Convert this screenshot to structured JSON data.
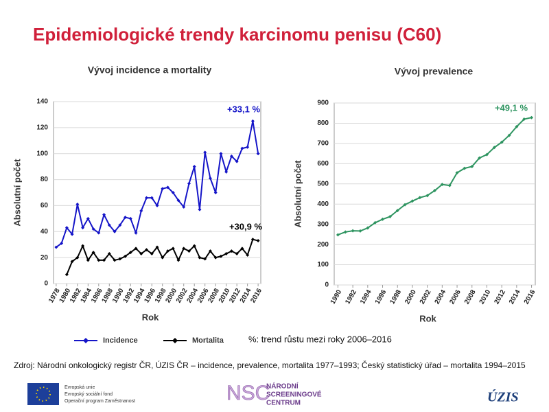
{
  "title": "Epidemiologické trendy karcinomu penisu (C60)",
  "chart_data": [
    {
      "type": "line",
      "title": "Vývoj incidence a mortality",
      "xlabel": "Rok",
      "ylabel": "Absolutní počet",
      "x": [
        1978,
        1979,
        1980,
        1981,
        1982,
        1983,
        1984,
        1985,
        1986,
        1987,
        1988,
        1989,
        1990,
        1991,
        1992,
        1993,
        1994,
        1995,
        1996,
        1997,
        1998,
        1999,
        2000,
        2001,
        2002,
        2003,
        2004,
        2005,
        2006,
        2007,
        2008,
        2009,
        2010,
        2011,
        2012,
        2013,
        2014,
        2015,
        2016
      ],
      "xlim": [
        1977.5,
        2016.5
      ],
      "xticks": [
        1978,
        1980,
        1982,
        1984,
        1986,
        1988,
        1990,
        1992,
        1994,
        1996,
        1998,
        2000,
        2002,
        2004,
        2006,
        2008,
        2010,
        2012,
        2014,
        2016
      ],
      "ylim": [
        0,
        140
      ],
      "yticks": [
        0,
        20,
        40,
        60,
        80,
        100,
        120,
        140
      ],
      "grid": true,
      "legend": "bottom",
      "series": [
        {
          "name": "Incidence",
          "color": "#1515c8",
          "values": [
            28,
            31,
            43,
            38,
            61,
            43,
            50,
            42,
            39,
            53,
            45,
            40,
            45,
            51,
            50,
            39,
            56,
            66,
            66,
            60,
            73,
            74,
            70,
            64,
            59,
            77,
            90,
            57,
            101,
            81,
            70,
            100,
            86,
            98,
            94,
            104,
            105,
            125,
            100
          ]
        },
        {
          "name": "Mortalita",
          "color": "#000000",
          "values": [
            null,
            null,
            7,
            17,
            20,
            29,
            18,
            24,
            18,
            18,
            23,
            18,
            19,
            21,
            24,
            27,
            23,
            26,
            23,
            28,
            20,
            25,
            27,
            18,
            27,
            25,
            29,
            20,
            19,
            25,
            20,
            21,
            23,
            25,
            23,
            27,
            22,
            34,
            33
          ]
        }
      ],
      "annotations": [
        "+33,1 %",
        "+30,9 %"
      ]
    },
    {
      "type": "line",
      "title": "Vývoj prevalence",
      "xlabel": "Rok",
      "ylabel": "Absolutní počet",
      "x": [
        1990,
        1991,
        1992,
        1993,
        1994,
        1995,
        1996,
        1997,
        1998,
        1999,
        2000,
        2001,
        2002,
        2003,
        2004,
        2005,
        2006,
        2007,
        2008,
        2009,
        2010,
        2011,
        2012,
        2013,
        2014,
        2015,
        2016
      ],
      "xlim": [
        1989.5,
        2016.5
      ],
      "xticks": [
        1990,
        1992,
        1994,
        1996,
        1998,
        2000,
        2002,
        2004,
        2006,
        2008,
        2010,
        2012,
        2014,
        2016
      ],
      "ylim": [
        0,
        900
      ],
      "yticks": [
        0,
        100,
        200,
        300,
        400,
        500,
        600,
        700,
        800,
        900
      ],
      "grid": true,
      "series": [
        {
          "color": "#2e9460",
          "values": [
            248,
            262,
            268,
            267,
            282,
            308,
            325,
            338,
            368,
            397,
            415,
            432,
            442,
            467,
            497,
            492,
            555,
            577,
            586,
            628,
            645,
            680,
            706,
            740,
            783,
            820,
            828
          ]
        }
      ],
      "annotations": [
        "+49,1 %"
      ]
    }
  ],
  "note": "%: trend růstu mezi roky 2006–2016",
  "source": "Zdroj: Národní onkologický registr ČR, ÚZIS ČR – incidence, prevalence, mortalita 1977–1993; Český statistický úřad – mortalita 1994–2015",
  "footer": {
    "eu": [
      "Evropská unie",
      "Evropský sociální fond",
      "Operační program Zaměstnanost"
    ],
    "nsc": [
      "NSC",
      "NÁRODNÍ",
      "SCREENINGOVÉ",
      "CENTRUM"
    ],
    "uzis": "ÚZIS"
  }
}
